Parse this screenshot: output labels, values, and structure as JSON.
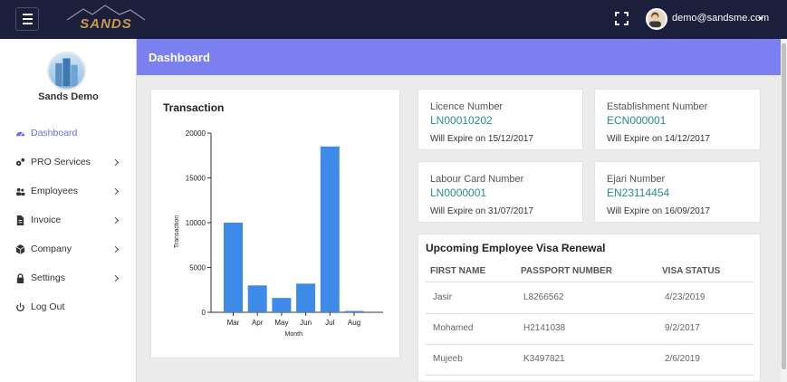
{
  "header": {
    "user_email": "demo@sandsme.com",
    "icons": [
      "menu-icon",
      "sands-logo",
      "fullscreen-icon",
      "user-avatar",
      "caret-down-icon"
    ]
  },
  "sidebar": {
    "profile_name": "Sands Demo",
    "items": [
      {
        "label": "Dashboard",
        "icon": "dashboard-icon",
        "active": true
      },
      {
        "label": "PRO Services",
        "icon": "cogs-icon"
      },
      {
        "label": "Employees",
        "icon": "users-icon"
      },
      {
        "label": "Invoice",
        "icon": "file-icon"
      },
      {
        "label": "Company",
        "icon": "cube-icon"
      },
      {
        "label": "Settings",
        "icon": "lock-icon"
      },
      {
        "label": "Log Out",
        "icon": "power-icon"
      }
    ]
  },
  "page": {
    "title": "Dashboard"
  },
  "colors": {
    "banner": "#7b7ff0",
    "topbar": "#1c1f3b",
    "bar": "#3d8ae8",
    "accent_value": "#2a8c8c"
  },
  "transaction": {
    "title": "Transaction",
    "chart_data": {
      "type": "bar",
      "categories": [
        "Mar",
        "Apr",
        "May",
        "Jun",
        "Jul",
        "Aug"
      ],
      "values": [
        10000,
        3000,
        1600,
        3200,
        18500,
        150
      ],
      "xlabel": "Month",
      "ylabel": "Transaction",
      "ylim": [
        0,
        20000
      ],
      "yticks": [
        "0",
        "5000",
        "10000",
        "15000",
        "20000"
      ],
      "grid": false
    }
  },
  "info_cards": [
    {
      "label": "Licence Number",
      "value": "LN00010202",
      "expire": "Will Expire on 15/12/2017"
    },
    {
      "label": "Establishment Number",
      "value": "ECN000001",
      "expire": "Will Expire on 14/12/2017"
    },
    {
      "label": "Labour Card Number",
      "value": "LN0000001",
      "expire": "Will Expire on 31/07/2017"
    },
    {
      "label": "Ejari Number",
      "value": "EN23114454",
      "expire": "Will Expire on 16/09/2017"
    }
  ],
  "visa": {
    "title": "Upcoming Employee Visa Renewal",
    "headers": [
      "FIRST NAME",
      "PASSPORT NUMBER",
      "VISA STATUS"
    ],
    "rows": [
      [
        "Jasir",
        "L8266562",
        "4/23/2019"
      ],
      [
        "Mohamed",
        "H2141038",
        "9/2/2017"
      ],
      [
        "Mujeeb",
        "K3497821",
        "2/6/2019"
      ]
    ]
  }
}
